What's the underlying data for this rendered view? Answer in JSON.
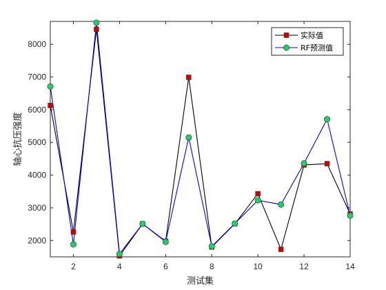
{
  "chart_data": {
    "type": "line",
    "title": "",
    "xlabel": "测试集",
    "ylabel": "轴心抗压强度",
    "x": [
      1,
      2,
      3,
      4,
      5,
      6,
      7,
      8,
      9,
      10,
      11,
      12,
      13,
      14
    ],
    "xlim": [
      1,
      14
    ],
    "ylim": [
      1500,
      8700
    ],
    "xticks": [
      2,
      4,
      6,
      8,
      10,
      12,
      14
    ],
    "yticks": [
      2000,
      3000,
      4000,
      5000,
      6000,
      7000,
      8000
    ],
    "grid": false,
    "legend_position": "top-right",
    "series": [
      {
        "name": "实际值",
        "values": [
          6130,
          2260,
          8460,
          1530,
          2510,
          1980,
          6990,
          1800,
          2510,
          3430,
          1730,
          4310,
          4350,
          2810
        ],
        "line_color": "#000000",
        "marker": "square",
        "marker_color": "#cc0000"
      },
      {
        "name": "RF预测值",
        "values": [
          6710,
          1880,
          8660,
          1590,
          2510,
          1960,
          5150,
          1820,
          2520,
          3230,
          3100,
          4360,
          5710,
          2760
        ],
        "line_color": "#0000ff",
        "marker": "circle",
        "marker_color": "#22cc66"
      }
    ]
  }
}
